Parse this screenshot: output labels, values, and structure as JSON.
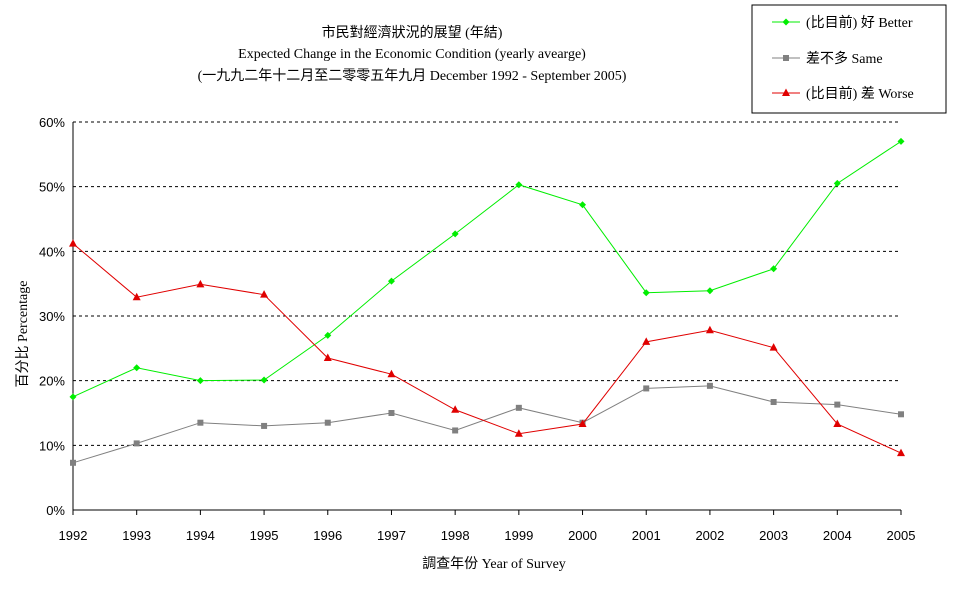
{
  "chart_data": {
    "type": "line",
    "title": "市民對經濟狀況的展望 (年結)",
    "subtitle": "Expected Change in the Economic Condition (yearly avearge)",
    "subtitle2": "(一九九二年十二月至二零零五年九月 December 1992 - September 2005)",
    "xlabel": "調查年份 Year of Survey",
    "ylabel": "百分比 Percentage",
    "x": [
      "1992",
      "1993",
      "1994",
      "1995",
      "1996",
      "1997",
      "1998",
      "1999",
      "2000",
      "2001",
      "2002",
      "2003",
      "2004",
      "2005"
    ],
    "yticks": [
      "0%",
      "10%",
      "20%",
      "30%",
      "40%",
      "50%",
      "60%"
    ],
    "ylim": [
      0,
      60
    ],
    "grid": true,
    "legend_position": "top-right",
    "series": [
      {
        "name": "(比目前) 好 Better",
        "color": "#00ee00",
        "marker": "diamond",
        "values": [
          17.5,
          22.0,
          20.0,
          20.1,
          27.0,
          35.4,
          42.7,
          50.3,
          47.2,
          33.6,
          33.9,
          37.3,
          50.5,
          57.0
        ]
      },
      {
        "name": "差不多 Same",
        "color": "#808080",
        "marker": "square",
        "values": [
          7.3,
          10.3,
          13.5,
          13.0,
          13.5,
          15.0,
          12.3,
          15.8,
          13.5,
          18.8,
          19.2,
          16.7,
          16.3,
          14.8
        ]
      },
      {
        "name": "(比目前) 差 Worse",
        "color": "#e00000",
        "marker": "triangle",
        "values": [
          41.2,
          32.9,
          34.9,
          33.3,
          23.5,
          21.0,
          15.5,
          11.8,
          13.3,
          26.0,
          27.8,
          25.1,
          13.3,
          8.8
        ]
      }
    ]
  }
}
